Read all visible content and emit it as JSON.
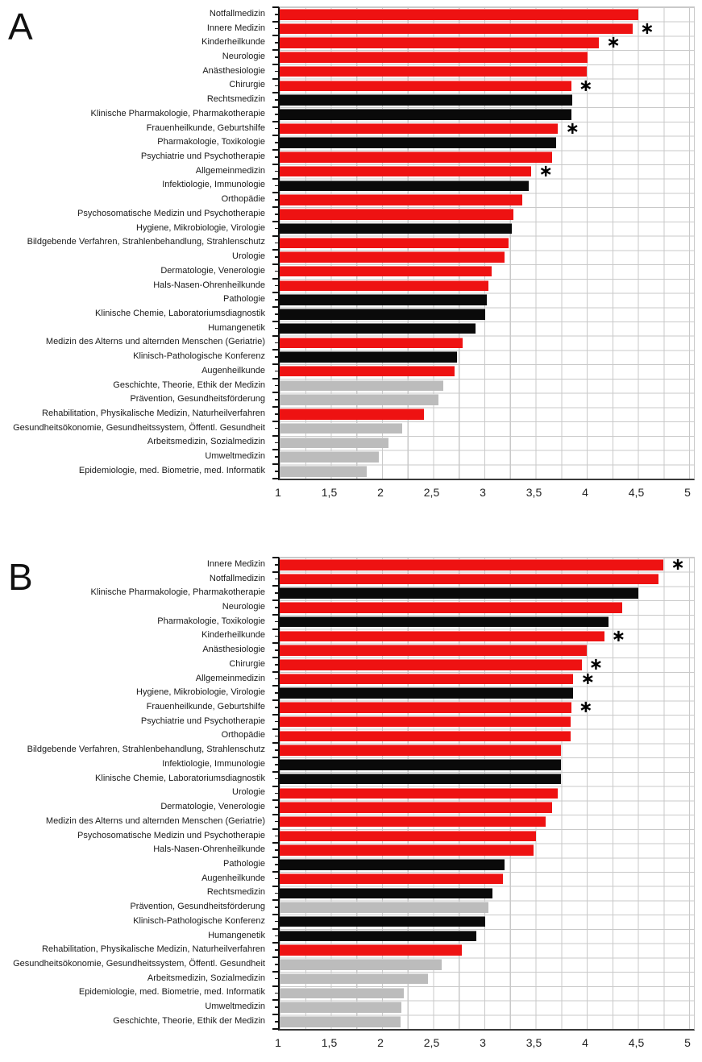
{
  "figure": {
    "description_note": "",
    "star_symbol": "∗",
    "x_tick_labels": [
      "1",
      "1,5",
      "2",
      "2,5",
      "3",
      "3,5",
      "4",
      "4,5",
      "5"
    ]
  },
  "chart_data": [
    {
      "type": "bar",
      "orientation": "horizontal",
      "panel_label": "A",
      "xlim": [
        1,
        5
      ],
      "grid": true,
      "legend": false,
      "x_tick_labels": [
        "1",
        "1,5",
        "2",
        "2,5",
        "3",
        "3,5",
        "4",
        "4,5",
        "5"
      ],
      "colors": {
        "red": "#ee1212",
        "black": "#0a0a0a",
        "gray": "#bcbcbc"
      },
      "rows": [
        {
          "category": "Notfallmedizin",
          "value": 4.5,
          "color": "red",
          "star": false
        },
        {
          "category": "Innere Medizin",
          "value": 4.45,
          "color": "red",
          "star": true
        },
        {
          "category": "Kinderheilkunde",
          "value": 4.12,
          "color": "red",
          "star": true
        },
        {
          "category": "Neurologie",
          "value": 4.01,
          "color": "red",
          "star": false
        },
        {
          "category": "Anästhesiologie",
          "value": 4.0,
          "color": "red",
          "star": false
        },
        {
          "category": "Chirurgie",
          "value": 3.85,
          "color": "red",
          "star": true
        },
        {
          "category": "Rechtsmedizin",
          "value": 3.86,
          "color": "black",
          "star": false
        },
        {
          "category": "Klinische Pharmakologie, Pharmakotherapie",
          "value": 3.85,
          "color": "black",
          "star": false
        },
        {
          "category": "Frauenheilkunde, Geburtshilfe",
          "value": 3.72,
          "color": "red",
          "star": true
        },
        {
          "category": "Pharmakologie, Toxikologie",
          "value": 3.7,
          "color": "black",
          "star": false
        },
        {
          "category": "Psychiatrie und Psychotherapie",
          "value": 3.66,
          "color": "red",
          "star": false
        },
        {
          "category": "Allgemeinmedizin",
          "value": 3.46,
          "color": "red",
          "star": true
        },
        {
          "category": "Infektiologie, Immunologie",
          "value": 3.43,
          "color": "black",
          "star": false
        },
        {
          "category": "Orthopädie",
          "value": 3.37,
          "color": "red",
          "star": false
        },
        {
          "category": "Psychosomatische Medizin und Psychotherapie",
          "value": 3.28,
          "color": "red",
          "star": false
        },
        {
          "category": "Hygiene, Mikrobiologie, Virologie",
          "value": 3.27,
          "color": "black",
          "star": false
        },
        {
          "category": "Bildgebende Verfahren, Strahlenbehandlung, Strahlenschutz",
          "value": 3.24,
          "color": "red",
          "star": false
        },
        {
          "category": "Urologie",
          "value": 3.2,
          "color": "red",
          "star": false
        },
        {
          "category": "Dermatologie, Venerologie",
          "value": 3.07,
          "color": "red",
          "star": false
        },
        {
          "category": "Hals-Nasen-Ohrenheilkunde",
          "value": 3.04,
          "color": "red",
          "star": false
        },
        {
          "category": "Pathologie",
          "value": 3.02,
          "color": "black",
          "star": false
        },
        {
          "category": "Klinische Chemie, Laboratoriumsdiagnostik",
          "value": 3.01,
          "color": "black",
          "star": false
        },
        {
          "category": "Humangenetik",
          "value": 2.91,
          "color": "black",
          "star": false
        },
        {
          "category": "Medizin des Alterns und alternden Menschen (Geriatrie)",
          "value": 2.79,
          "color": "red",
          "star": false
        },
        {
          "category": "Klinisch-Pathologische Konferenz",
          "value": 2.73,
          "color": "black",
          "star": false
        },
        {
          "category": "Augenheilkunde",
          "value": 2.71,
          "color": "red",
          "star": false
        },
        {
          "category": "Geschichte, Theorie, Ethik der Medizin",
          "value": 2.6,
          "color": "gray",
          "star": false
        },
        {
          "category": "Prävention, Gesundheitsförderung",
          "value": 2.55,
          "color": "gray",
          "star": false
        },
        {
          "category": "Rehabilitation, Physikalische Medizin, Naturheilverfahren",
          "value": 2.41,
          "color": "red",
          "star": false
        },
        {
          "category": "Gesundheitsökonomie, Gesundheitssystem, Öffentl. Gesundheit",
          "value": 2.2,
          "color": "gray",
          "star": false
        },
        {
          "category": "Arbeitsmedizin, Sozialmedizin",
          "value": 2.06,
          "color": "gray",
          "star": false
        },
        {
          "category": "Umweltmedizin",
          "value": 1.97,
          "color": "gray",
          "star": false
        },
        {
          "category": "Epidemiologie, med. Biometrie, med. Informatik",
          "value": 1.85,
          "color": "gray",
          "star": false
        }
      ]
    },
    {
      "type": "bar",
      "orientation": "horizontal",
      "panel_label": "B",
      "xlim": [
        1,
        5
      ],
      "grid": true,
      "legend": false,
      "x_tick_labels": [
        "1",
        "1,5",
        "2",
        "2,5",
        "3",
        "3,5",
        "4",
        "4,5",
        "5"
      ],
      "colors": {
        "red": "#ee1212",
        "black": "#0a0a0a",
        "gray": "#bcbcbc"
      },
      "rows": [
        {
          "category": "Innere Medizin",
          "value": 4.75,
          "color": "red",
          "star": true
        },
        {
          "category": "Notfallmedizin",
          "value": 4.7,
          "color": "red",
          "star": false
        },
        {
          "category": "Klinische Pharmakologie, Pharmakotherapie",
          "value": 4.5,
          "color": "black",
          "star": false
        },
        {
          "category": "Neurologie",
          "value": 4.35,
          "color": "red",
          "star": false
        },
        {
          "category": "Pharmakologie, Toxikologie",
          "value": 4.21,
          "color": "black",
          "star": false
        },
        {
          "category": "Kinderheilkunde",
          "value": 4.17,
          "color": "red",
          "star": true
        },
        {
          "category": "Anästhesiologie",
          "value": 4.0,
          "color": "red",
          "star": false
        },
        {
          "category": "Chirurgie",
          "value": 3.95,
          "color": "red",
          "star": true
        },
        {
          "category": "Allgemeinmedizin",
          "value": 3.87,
          "color": "red",
          "star": true
        },
        {
          "category": "Hygiene, Mikrobiologie, Virologie",
          "value": 3.87,
          "color": "black",
          "star": false
        },
        {
          "category": "Frauenheilkunde, Geburtshilfe",
          "value": 3.85,
          "color": "red",
          "star": true
        },
        {
          "category": "Psychiatrie und Psychotherapie",
          "value": 3.84,
          "color": "red",
          "star": false
        },
        {
          "category": "Orthopädie",
          "value": 3.84,
          "color": "red",
          "star": false
        },
        {
          "category": "Bildgebende Verfahren, Strahlenbehandlung, Strahlenschutz",
          "value": 3.75,
          "color": "red",
          "star": false
        },
        {
          "category": "Infektiologie, Immunologie",
          "value": 3.75,
          "color": "black",
          "star": false
        },
        {
          "category": "Klinische Chemie, Laboratoriumsdiagnostik",
          "value": 3.75,
          "color": "black",
          "star": false
        },
        {
          "category": "Urologie",
          "value": 3.72,
          "color": "red",
          "star": false
        },
        {
          "category": "Dermatologie, Venerologie",
          "value": 3.66,
          "color": "red",
          "star": false
        },
        {
          "category": "Medizin des Alterns und alternden Menschen (Geriatrie)",
          "value": 3.6,
          "color": "red",
          "star": false
        },
        {
          "category": "Psychosomatische Medizin und Psychotherapie",
          "value": 3.5,
          "color": "red",
          "star": false
        },
        {
          "category": "Hals-Nasen-Ohrenheilkunde",
          "value": 3.48,
          "color": "red",
          "star": false
        },
        {
          "category": "Pathologie",
          "value": 3.2,
          "color": "black",
          "star": false
        },
        {
          "category": "Augenheilkunde",
          "value": 3.18,
          "color": "red",
          "star": false
        },
        {
          "category": "Rechtsmedizin",
          "value": 3.08,
          "color": "black",
          "star": false
        },
        {
          "category": "Prävention, Gesundheitsförderung",
          "value": 3.04,
          "color": "gray",
          "star": false
        },
        {
          "category": "Klinisch-Pathologische Konferenz",
          "value": 3.01,
          "color": "black",
          "star": false
        },
        {
          "category": "Humangenetik",
          "value": 2.92,
          "color": "black",
          "star": false
        },
        {
          "category": "Rehabilitation, Physikalische Medizin, Naturheilverfahren",
          "value": 2.78,
          "color": "red",
          "star": false
        },
        {
          "category": "Gesundheitsökonomie, Gesundheitssystem, Öffentl. Gesundheit",
          "value": 2.58,
          "color": "gray",
          "star": false
        },
        {
          "category": "Arbeitsmedizin, Sozialmedizin",
          "value": 2.45,
          "color": "gray",
          "star": false
        },
        {
          "category": "Epidemiologie, med. Biometrie, med. Informatik",
          "value": 2.21,
          "color": "gray",
          "star": false
        },
        {
          "category": "Umweltmedizin",
          "value": 2.19,
          "color": "gray",
          "star": false
        },
        {
          "category": "Geschichte, Theorie, Ethik der Medizin",
          "value": 2.18,
          "color": "gray",
          "star": false
        }
      ]
    }
  ]
}
